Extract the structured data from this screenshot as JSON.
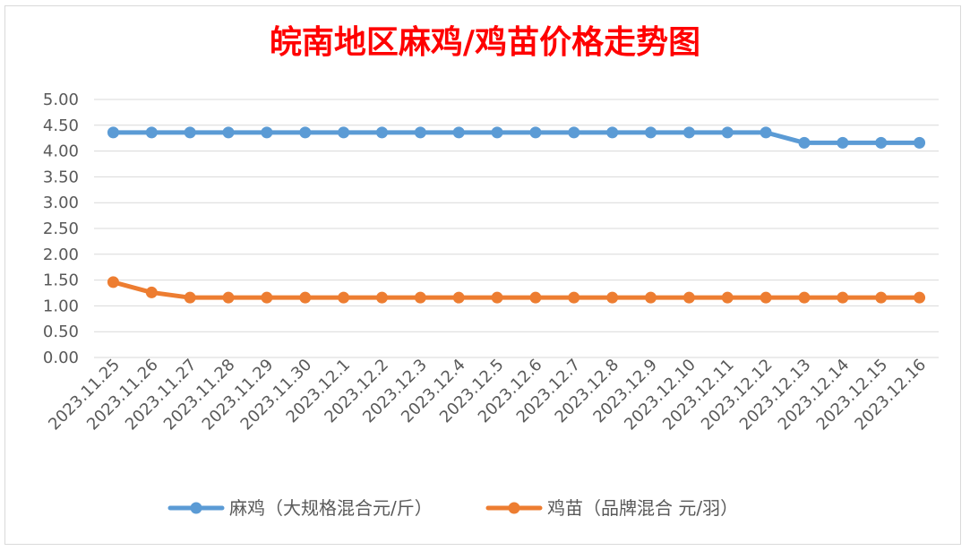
{
  "chart_data": {
    "type": "line",
    "title": "皖南地区麻鸡/鸡苗价格走势图",
    "categories": [
      "2023.11.25",
      "2023.11.26",
      "2023.11.27",
      "2023.11.28",
      "2023.11.29",
      "2023.11.30",
      "2023.12.1",
      "2023.12.2",
      "2023.12.3",
      "2023.12.4",
      "2023.12.5",
      "2023.12.6",
      "2023.12.7",
      "2023.12.8",
      "2023.12.9",
      "2023.12.10",
      "2023.12.11",
      "2023.12.12",
      "2023.12.13",
      "2023.12.14",
      "2023.12.15",
      "2023.12.16"
    ],
    "series": [
      {
        "name": "麻鸡（大规格混合元/斤）",
        "color": "#5b9bd5",
        "values": [
          4.36,
          4.36,
          4.36,
          4.36,
          4.36,
          4.36,
          4.36,
          4.36,
          4.36,
          4.36,
          4.36,
          4.36,
          4.36,
          4.36,
          4.36,
          4.36,
          4.36,
          4.36,
          4.16,
          4.16,
          4.16,
          4.16
        ]
      },
      {
        "name": "鸡苗（品牌混合 元/羽）",
        "color": "#ed7d31",
        "values": [
          1.46,
          1.26,
          1.16,
          1.16,
          1.16,
          1.16,
          1.16,
          1.16,
          1.16,
          1.16,
          1.16,
          1.16,
          1.16,
          1.16,
          1.16,
          1.16,
          1.16,
          1.16,
          1.16,
          1.16,
          1.16,
          1.16
        ]
      }
    ],
    "yticks": [
      "0.00",
      "0.50",
      "1.00",
      "1.50",
      "2.00",
      "2.50",
      "3.00",
      "3.50",
      "4.00",
      "4.50",
      "5.00"
    ],
    "ylim": [
      0,
      5
    ],
    "xlabel": "",
    "ylabel": "",
    "grid": true,
    "legend_position": "bottom"
  }
}
